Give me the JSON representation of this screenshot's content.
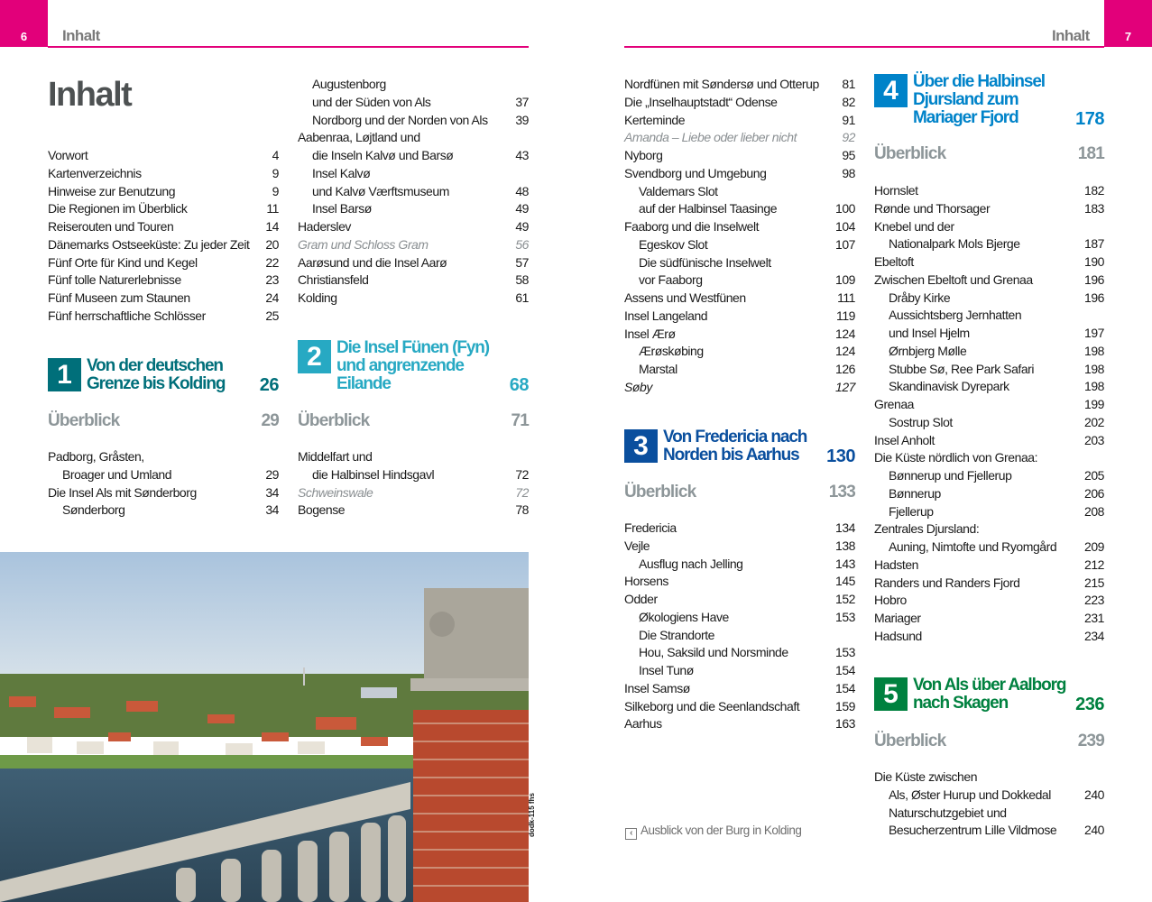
{
  "left_page": {
    "number": "6",
    "header": "Inhalt",
    "title": "Inhalt"
  },
  "right_page": {
    "number": "7",
    "header": "Inhalt"
  },
  "colors": {
    "accent": "#e2007a",
    "chapter_1": "#006f7a",
    "chapter_2": "#27a9c3",
    "chapter_3": "#0a4f9e",
    "chapter_4": "#0083c9",
    "chapter_5": "#00813f",
    "overview": "#8d9699"
  },
  "columns": [
    {
      "blocks": [
        {
          "type": "list",
          "entries": [
            {
              "t": "Vorwort",
              "p": "4"
            },
            {
              "t": "Kartenverzeichnis",
              "p": "9"
            },
            {
              "t": "Hinweise zur Benutzung",
              "p": "9"
            },
            {
              "t": "Die Regionen im Überblick",
              "p": "11"
            },
            {
              "t": "Reiserouten und Touren",
              "p": "14"
            },
            {
              "t": "Dänemarks Ostseeküste: Zu jeder Zeit",
              "p": "20"
            },
            {
              "t": "Fünf Orte für Kind und Kegel",
              "p": "22"
            },
            {
              "t": "Fünf tolle Naturerlebnisse",
              "p": "23"
            },
            {
              "t": "Fünf Museen zum Staunen",
              "p": "24"
            },
            {
              "t": "Fünf herrschaftliche Schlösser",
              "p": "25"
            }
          ]
        },
        {
          "type": "chapter",
          "num": "1",
          "color": "chapter_1",
          "lines": [
            "Von der deutschen",
            "Grenze bis Kolding"
          ],
          "p": "26"
        },
        {
          "type": "overview",
          "t": "Überblick",
          "p": "29"
        },
        {
          "type": "list",
          "entries": [
            {
              "t": "Padborg, Gråsten,",
              "p": ""
            },
            {
              "t": "Broager und Umland",
              "p": "29",
              "s": "indent"
            },
            {
              "t": "Die Insel Als mit Sønderborg",
              "p": "34"
            },
            {
              "t": "Sønderborg",
              "p": "34",
              "s": "indent"
            }
          ]
        }
      ]
    },
    {
      "blocks": [
        {
          "type": "list",
          "entries": [
            {
              "t": "Augustenborg",
              "p": "",
              "s": "indent"
            },
            {
              "t": "und der Süden von Als",
              "p": "37",
              "s": "indent"
            },
            {
              "t": "Nordborg und der Norden von Als",
              "p": "39",
              "s": "indent"
            },
            {
              "t": "Aabenraa, Løjtland und",
              "p": ""
            },
            {
              "t": "die Inseln Kalvø und Barsø",
              "p": "43",
              "s": "indent"
            },
            {
              "t": "Insel Kalvø",
              "p": "",
              "s": "indent"
            },
            {
              "t": "und Kalvø Værftsmuseum",
              "p": "48",
              "s": "indent"
            },
            {
              "t": "Insel Barsø",
              "p": "49",
              "s": "indent"
            },
            {
              "t": "Haderslev",
              "p": "49"
            },
            {
              "t": "Gram und Schloss Gram",
              "p": "56",
              "s": "gray"
            },
            {
              "t": "Aarøsund und die Insel Aarø",
              "p": "57"
            },
            {
              "t": "Christiansfeld",
              "p": "58"
            },
            {
              "t": "Kolding",
              "p": "61"
            }
          ]
        },
        {
          "type": "chapter",
          "num": "2",
          "color": "chapter_2",
          "lines": [
            "Die Insel Fünen (Fyn)",
            "und angrenzende",
            "Eilande"
          ],
          "p": "68"
        },
        {
          "type": "overview",
          "t": "Überblick",
          "p": "71"
        },
        {
          "type": "list",
          "entries": [
            {
              "t": "Middelfart und",
              "p": ""
            },
            {
              "t": "die Halbinsel Hindsgavl",
              "p": "72",
              "s": "indent"
            },
            {
              "t": "Schweinswale",
              "p": "72",
              "s": "gray"
            },
            {
              "t": "Bogense",
              "p": "78"
            }
          ]
        }
      ]
    },
    {
      "blocks": [
        {
          "type": "list",
          "entries": [
            {
              "t": "Nordfünen mit Søndersø und Otterup",
              "p": "81"
            },
            {
              "t": "Die „Inselhauptstadt“ Odense",
              "p": "82"
            },
            {
              "t": "Kerteminde",
              "p": "91"
            },
            {
              "t": "Amanda – Liebe oder lieber nicht",
              "p": "92",
              "s": "gray"
            },
            {
              "t": "Nyborg",
              "p": "95"
            },
            {
              "t": "Svendborg und Umgebung",
              "p": "98"
            },
            {
              "t": "Valdemars Slot",
              "p": "",
              "s": "indent"
            },
            {
              "t": "auf der Halbinsel Taasinge",
              "p": "100",
              "s": "indent"
            },
            {
              "t": "Faaborg und die Inselwelt",
              "p": "104"
            },
            {
              "t": "Egeskov Slot",
              "p": "107",
              "s": "indent"
            },
            {
              "t": "Die südfünische Inselwelt",
              "p": "",
              "s": "indent"
            },
            {
              "t": "vor Faaborg",
              "p": "109",
              "s": "indent"
            },
            {
              "t": "Assens und Westfünen",
              "p": "111"
            },
            {
              "t": "Insel Langeland",
              "p": "119"
            },
            {
              "t": "Insel Ærø",
              "p": "124"
            },
            {
              "t": "Ærøskøbing",
              "p": "124",
              "s": "indent"
            },
            {
              "t": "Marstal",
              "p": "126",
              "s": "indent"
            },
            {
              "t": "Søby",
              "p": "127",
              "s": "dark"
            }
          ]
        },
        {
          "type": "chapter",
          "num": "3",
          "color": "chapter_3",
          "lines": [
            "Von Fredericia nach",
            "Norden bis Aarhus"
          ],
          "p": "130"
        },
        {
          "type": "overview",
          "t": "Überblick",
          "p": "133"
        },
        {
          "type": "list",
          "entries": [
            {
              "t": "Fredericia",
              "p": "134"
            },
            {
              "t": "Vejle",
              "p": "138"
            },
            {
              "t": "Ausflug nach Jelling",
              "p": "143",
              "s": "indent"
            },
            {
              "t": "Horsens",
              "p": "145"
            },
            {
              "t": "Odder",
              "p": "152"
            },
            {
              "t": "Økologiens Have",
              "p": "153",
              "s": "indent"
            },
            {
              "t": "Die Strandorte",
              "p": "",
              "s": "indent"
            },
            {
              "t": "Hou, Saksild und Norsminde",
              "p": "153",
              "s": "indent"
            },
            {
              "t": "Insel Tunø",
              "p": "154",
              "s": "indent"
            },
            {
              "t": "Insel Samsø",
              "p": "154"
            },
            {
              "t": "Silkeborg und die Seenlandschaft",
              "p": "159"
            },
            {
              "t": "Aarhus",
              "p": "163"
            }
          ]
        }
      ]
    },
    {
      "blocks": [
        {
          "type": "chapter",
          "num": "4",
          "color": "chapter_4",
          "lines": [
            "Über die Halbinsel",
            "Djursland zum",
            "Mariager Fjord"
          ],
          "p": "178"
        },
        {
          "type": "overview",
          "t": "Überblick",
          "p": "181"
        },
        {
          "type": "list",
          "entries": [
            {
              "t": "Hornslet",
              "p": "182"
            },
            {
              "t": "Rønde und Thorsager",
              "p": "183"
            },
            {
              "t": "Knebel und der",
              "p": ""
            },
            {
              "t": "Nationalpark Mols Bjerge",
              "p": "187",
              "s": "indent"
            },
            {
              "t": "Ebeltoft",
              "p": "190"
            },
            {
              "t": "Zwischen Ebeltoft und Grenaa",
              "p": "196"
            },
            {
              "t": "Dråby Kirke",
              "p": "196",
              "s": "indent"
            },
            {
              "t": "Aussichtsberg Jernhatten",
              "p": "",
              "s": "indent"
            },
            {
              "t": "und Insel Hjelm",
              "p": "197",
              "s": "indent"
            },
            {
              "t": "Ørnbjerg Mølle",
              "p": "198",
              "s": "indent"
            },
            {
              "t": "Stubbe Sø, Ree Park Safari",
              "p": "198",
              "s": "indent"
            },
            {
              "t": "Skandinavisk Dyrepark",
              "p": "198",
              "s": "indent"
            },
            {
              "t": "Grenaa",
              "p": "199"
            },
            {
              "t": "Sostrup Slot",
              "p": "202",
              "s": "indent"
            },
            {
              "t": "Insel Anholt",
              "p": "203"
            },
            {
              "t": "Die Küste nördlich von Grenaa:",
              "p": ""
            },
            {
              "t": "Bønnerup und Fjellerup",
              "p": "205",
              "s": "indent"
            },
            {
              "t": "Bønnerup",
              "p": "206",
              "s": "indent"
            },
            {
              "t": "Fjellerup",
              "p": "208",
              "s": "indent"
            },
            {
              "t": "Zentrales Djursland:",
              "p": ""
            },
            {
              "t": "Auning, Nimtofte und Ryomgård",
              "p": "209",
              "s": "indent"
            },
            {
              "t": "Hadsten",
              "p": "212"
            },
            {
              "t": "Randers und Randers Fjord",
              "p": "215"
            },
            {
              "t": "Hobro",
              "p": "223"
            },
            {
              "t": "Mariager",
              "p": "231"
            },
            {
              "t": "Hadsund",
              "p": "234"
            }
          ]
        },
        {
          "type": "chapter",
          "num": "5",
          "color": "chapter_5",
          "lines": [
            "Von Als über Aalborg",
            "nach Skagen"
          ],
          "p": "236"
        },
        {
          "type": "overview",
          "t": "Überblick",
          "p": "239"
        },
        {
          "type": "list",
          "entries": [
            {
              "t": "Die Küste zwischen",
              "p": ""
            },
            {
              "t": "Als, Øster Hurup und Dokkedal",
              "p": "240",
              "s": "indent"
            },
            {
              "t": "Naturschutzgebiet und",
              "p": "",
              "s": "indent"
            },
            {
              "t": "Besucherzentrum Lille Vildmose",
              "p": "240",
              "s": "indent"
            }
          ]
        }
      ]
    }
  ],
  "photo": {
    "credit": "dodk-115 fhs",
    "caption": "Ausblick von der Burg in Kolding",
    "caption_icon": "arrow-left-box-icon"
  }
}
